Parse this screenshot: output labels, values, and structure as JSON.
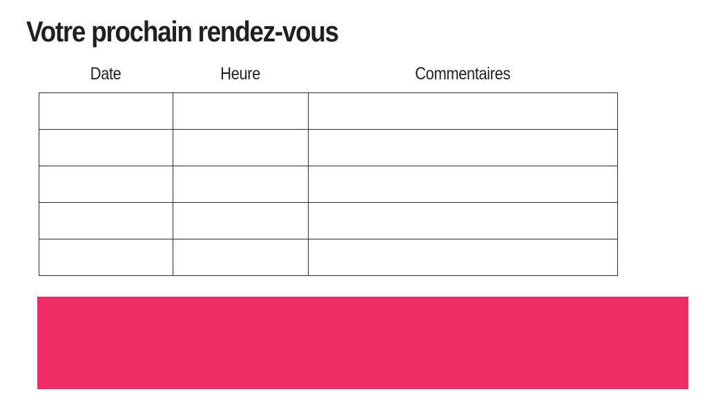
{
  "page": {
    "title": "Votre prochain rendez-vous"
  },
  "table": {
    "columns": [
      {
        "label": "Date"
      },
      {
        "label": "Heure"
      },
      {
        "label": "Commentaires"
      }
    ],
    "row_count": 5,
    "rows": [
      [
        "",
        "",
        ""
      ],
      [
        "",
        "",
        ""
      ],
      [
        "",
        "",
        ""
      ],
      [
        "",
        "",
        ""
      ],
      [
        "",
        "",
        ""
      ]
    ]
  },
  "highlight_band": {
    "text": ""
  },
  "colors": {
    "accent": "#EE2D67",
    "border": "#2A2A2A",
    "text": "#231F20",
    "background": "#FFFFFF"
  }
}
